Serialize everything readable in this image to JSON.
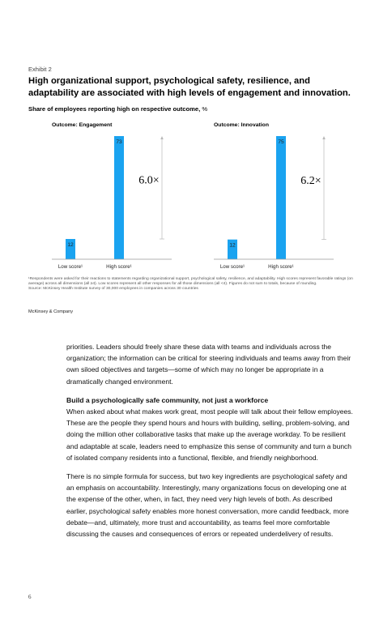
{
  "exhibit": {
    "label": "Exhibit 2",
    "title": "High organizational support, psychological safety, resilience, and adaptability are associated with high levels of engagement and innovation.",
    "subtitle": "Share of employees reporting high on respective outcome,",
    "unit": "%"
  },
  "colors": {
    "bar": "#1aa3f0",
    "axis": "#9a9a9a",
    "bracket": "#b8b8b8"
  },
  "chart_data": [
    {
      "type": "bar",
      "title": "Outcome: Engagement",
      "categories": [
        "Low score¹",
        "High score¹"
      ],
      "values": [
        12,
        73
      ],
      "multiple": "6.0×",
      "ylim": [
        0,
        73
      ],
      "grid": false,
      "legend": "none"
    },
    {
      "type": "bar",
      "title": "Outcome: Innovation",
      "categories": [
        "Low score¹",
        "High score¹"
      ],
      "values": [
        12,
        75
      ],
      "multiple": "6.2×",
      "ylim": [
        0,
        75
      ],
      "grid": false,
      "legend": "none"
    }
  ],
  "footnotes": {
    "note": "¹Respondents were asked for their reactions to statements regarding organizational support, psychological safety, resilience, and adaptability. High scores represent favorable ratings (on average) across all dimensions (all ≥4). Low scores represent all other responses for all those dimensions (all <4). Figures do not sum to totals, because of rounding.",
    "source": "Source: McKinsey Health Institute survey of 30,000 employees in companies across 30 countries"
  },
  "brand": "McKinsey & Company",
  "body": {
    "p1": "priorities. Leaders should freely share these data with teams and individuals across the organization; the information can be critical for steering individuals and teams away from their own siloed objectives and targets—some of which may no longer be appropriate in a dramatically changed environment.",
    "heading": "Build a psychologically safe community, not just a workforce",
    "p2": "When asked about what makes work great, most people will talk about their fellow employees. These are the people they spend hours and hours with building, selling, problem-solving, and doing the million other collaborative tasks that make up the average workday. To be resilient and adaptable at scale, leaders need to emphasize this sense of community and turn a bunch of isolated company residents into a functional, flexible, and friendly neighborhood.",
    "p3": "There is no simple formula for success, but two key ingredients are psychological safety and an emphasis on accountability. Interestingly, many organizations focus on developing one at the expense of the other, when, in fact, they need very high levels of both. As described earlier, psychological safety enables more honest conversation, more candid feedback, more debate—and, ultimately, more trust and accountability, as teams feel more comfortable discussing the causes and consequences of errors or repeated underdelivery of results."
  },
  "page_number": "6"
}
